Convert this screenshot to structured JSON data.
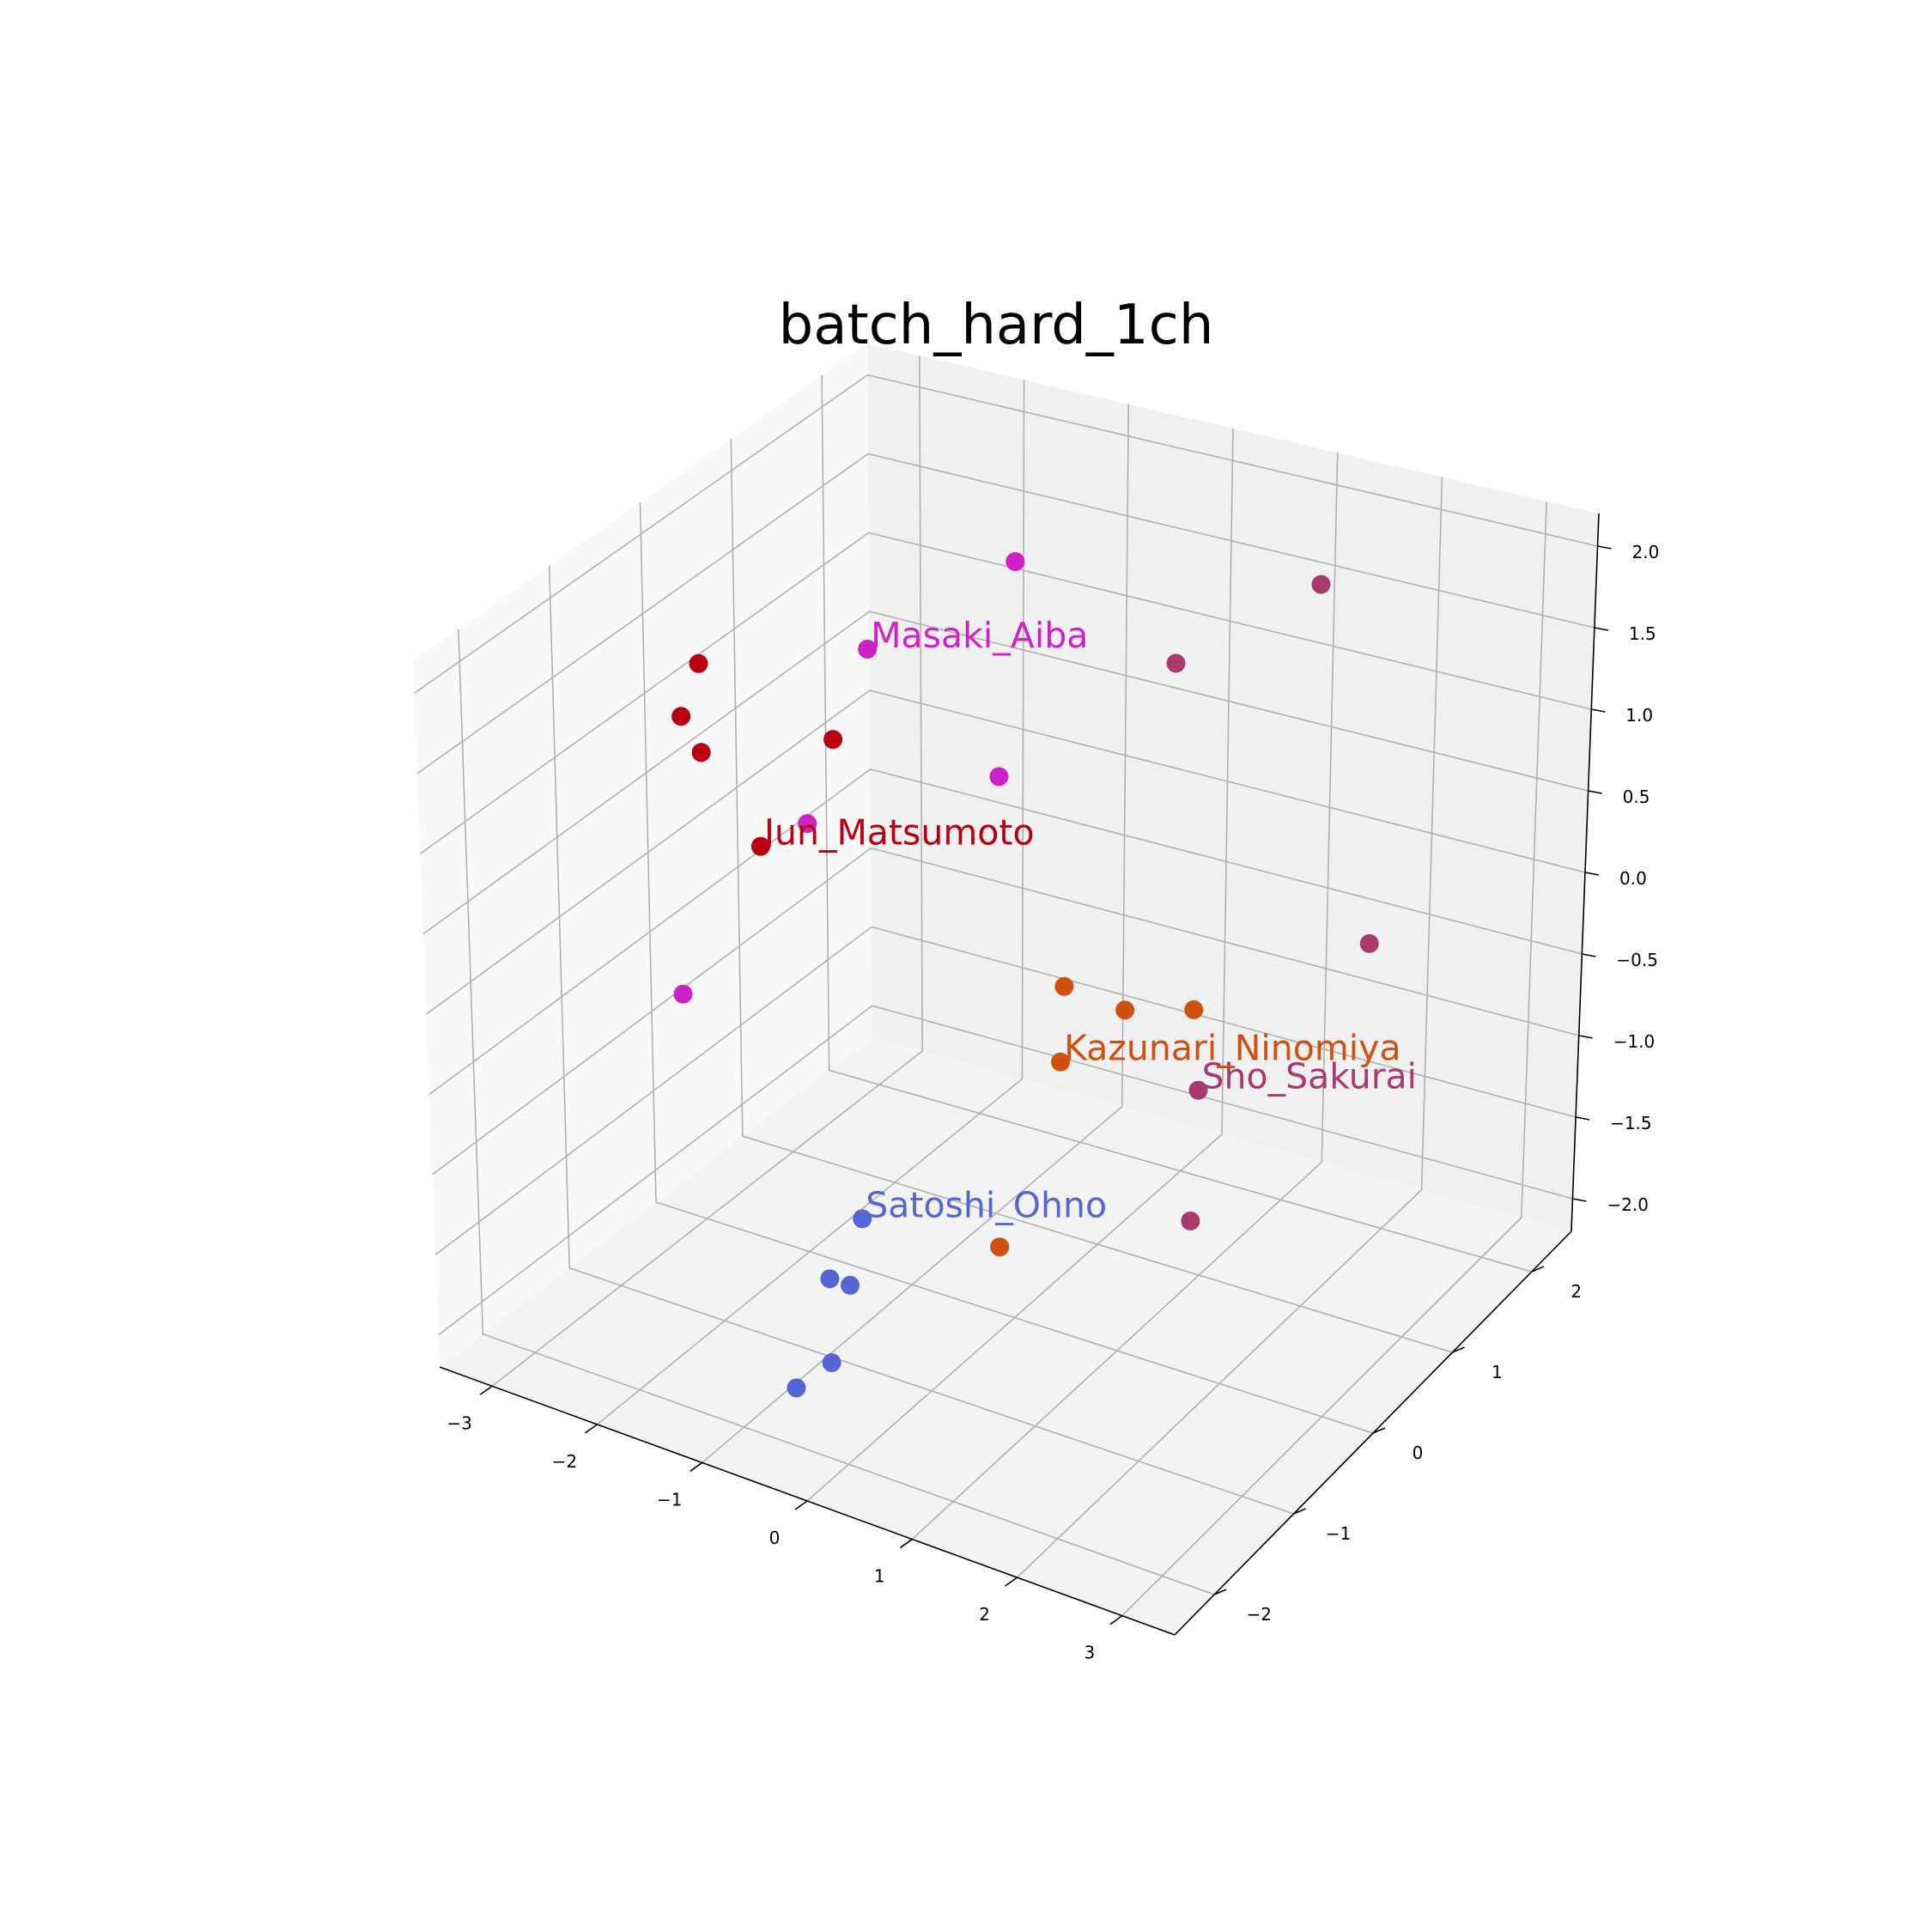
{
  "chart_data": {
    "type": "scatter3d",
    "title": "batch_hard_1ch",
    "xlim": [
      -3.5,
      3.5
    ],
    "ylim": [
      -2.5,
      2.5
    ],
    "zlim": [
      -2.2,
      2.2
    ],
    "x_ticks": [
      "−3",
      "−2",
      "−1",
      "0",
      "1",
      "2",
      "3"
    ],
    "y_ticks": [
      "−2",
      "−1",
      "0",
      "1",
      "2"
    ],
    "z_ticks": [
      "−2.0",
      "−1.5",
      "−1.0",
      "−0.5",
      "0.0",
      "0.5",
      "1.0",
      "1.5",
      "2.0"
    ],
    "series": [
      {
        "name": "Masaki_Aiba",
        "color": "#d020c8",
        "points": [
          {
            "x": -1.8,
            "y": 0.7,
            "z": 1.2
          },
          {
            "x": -1.6,
            "y": 2.0,
            "z": 1.3
          },
          {
            "x": -2.2,
            "y": 0.4,
            "z": 0.2
          },
          {
            "x": -1.3,
            "y": 1.5,
            "z": 0.2
          },
          {
            "x": -2.4,
            "y": -0.8,
            "z": -0.4
          }
        ]
      },
      {
        "name": "Jun_Matsumoto",
        "color": "#b80010",
        "points": [
          {
            "x": -2.3,
            "y": 0.0,
            "z": 0.2
          },
          {
            "x": -2.9,
            "y": 0.0,
            "z": 0.7
          },
          {
            "x": -2.9,
            "y": -0.2,
            "z": 1.0
          },
          {
            "x": -3.0,
            "y": 0.1,
            "z": 1.2
          },
          {
            "x": -2.2,
            "y": 0.7,
            "z": 0.6
          }
        ]
      },
      {
        "name": "Sho_Sakurai",
        "color": "#a83a70",
        "points": [
          {
            "x": 1.5,
            "y": 0.6,
            "z": -0.9
          },
          {
            "x": 1.2,
            "y": 2.2,
            "z": 1.5
          },
          {
            "x": 0.2,
            "y": 1.8,
            "z": 1.0
          },
          {
            "x": 2.3,
            "y": 1.6,
            "z": -0.3
          },
          {
            "x": 1.6,
            "y": 0.3,
            "z": -1.5
          }
        ]
      },
      {
        "name": "Kazunari_Ninomiya",
        "color": "#d05010",
        "points": [
          {
            "x": 0.2,
            "y": 0.5,
            "z": -0.9
          },
          {
            "x": 0.4,
            "y": 0.4,
            "z": -0.4
          },
          {
            "x": 0.7,
            "y": 0.7,
            "z": -0.6
          },
          {
            "x": 1.0,
            "y": 1.1,
            "z": -0.7
          },
          {
            "x": 0.1,
            "y": -0.2,
            "z": -1.7
          }
        ]
      },
      {
        "name": "Satoshi_Ohno",
        "color": "#5366d8",
        "points": [
          {
            "x": -0.8,
            "y": -0.7,
            "z": -1.5
          },
          {
            "x": -1.0,
            "y": -0.9,
            "z": -1.8
          },
          {
            "x": -0.8,
            "y": -0.9,
            "z": -1.8
          },
          {
            "x": -0.6,
            "y": -1.4,
            "z": -2.0
          },
          {
            "x": -0.8,
            "y": -1.6,
            "z": -2.1
          }
        ]
      }
    ]
  }
}
